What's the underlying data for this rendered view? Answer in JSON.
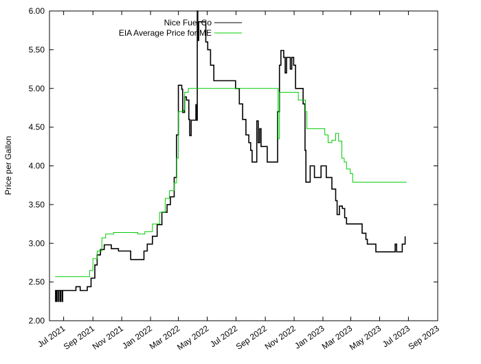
{
  "chart_data": {
    "type": "line",
    "title": "",
    "xlabel": "",
    "ylabel": "Price per Gallon",
    "xlim": [
      "2021-06-01",
      "2023-09-01"
    ],
    "ylim": [
      2.0,
      6.0
    ],
    "grid": false,
    "legend_position": "top-right",
    "y_ticks": [
      "2.00",
      "2.50",
      "3.00",
      "3.50",
      "4.00",
      "4.50",
      "5.00",
      "5.50",
      "6.00"
    ],
    "x_ticks": [
      {
        "date": "2021-07-01",
        "label": "Jul 2021"
      },
      {
        "date": "2021-09-01",
        "label": "Sep 2021"
      },
      {
        "date": "2021-11-01",
        "label": "Nov 2021"
      },
      {
        "date": "2022-01-01",
        "label": "Jan 2022"
      },
      {
        "date": "2022-03-01",
        "label": "Mar 2022"
      },
      {
        "date": "2022-05-01",
        "label": "May 2022"
      },
      {
        "date": "2022-07-01",
        "label": "Jul 2022"
      },
      {
        "date": "2022-09-01",
        "label": "Sep 2022"
      },
      {
        "date": "2022-11-01",
        "label": "Nov 2022"
      },
      {
        "date": "2023-01-01",
        "label": "Jan 2023"
      },
      {
        "date": "2023-03-01",
        "label": "Mar 2023"
      },
      {
        "date": "2023-05-01",
        "label": "May 2023"
      },
      {
        "date": "2023-07-01",
        "label": "Jul 2023"
      },
      {
        "date": "2023-09-01",
        "label": "Sep 2023"
      }
    ],
    "series": [
      {
        "name": "Nice Fuel Co",
        "color": "#000000",
        "points": [
          [
            "2021-06-13",
            2.25
          ],
          [
            "2021-06-14",
            2.39
          ],
          [
            "2021-06-16",
            2.25
          ],
          [
            "2021-06-17",
            2.39
          ],
          [
            "2021-06-20",
            2.25
          ],
          [
            "2021-06-21",
            2.39
          ],
          [
            "2021-06-24",
            2.25
          ],
          [
            "2021-06-25",
            2.39
          ],
          [
            "2021-06-28",
            2.25
          ],
          [
            "2021-06-29",
            2.39
          ],
          [
            "2021-07-20",
            2.39
          ],
          [
            "2021-07-27",
            2.44
          ],
          [
            "2021-08-05",
            2.39
          ],
          [
            "2021-08-20",
            2.44
          ],
          [
            "2021-08-28",
            2.55
          ],
          [
            "2021-09-05",
            2.72
          ],
          [
            "2021-09-10",
            2.85
          ],
          [
            "2021-09-17",
            2.92
          ],
          [
            "2021-09-25",
            2.98
          ],
          [
            "2021-10-10",
            2.93
          ],
          [
            "2021-10-25",
            2.9
          ],
          [
            "2021-11-15",
            2.9
          ],
          [
            "2021-11-20",
            2.79
          ],
          [
            "2021-12-15",
            2.79
          ],
          [
            "2021-12-18",
            2.9
          ],
          [
            "2021-12-25",
            2.99
          ],
          [
            "2022-01-05",
            3.09
          ],
          [
            "2022-01-15",
            3.24
          ],
          [
            "2022-01-25",
            3.4
          ],
          [
            "2022-02-05",
            3.5
          ],
          [
            "2022-02-12",
            3.6
          ],
          [
            "2022-02-20",
            3.85
          ],
          [
            "2022-02-25",
            4.4
          ],
          [
            "2022-03-01",
            5.04
          ],
          [
            "2022-03-08",
            4.99
          ],
          [
            "2022-03-10",
            4.69
          ],
          [
            "2022-03-14",
            4.89
          ],
          [
            "2022-03-18",
            4.85
          ],
          [
            "2022-03-23",
            4.6
          ],
          [
            "2022-03-25",
            4.39
          ],
          [
            "2022-03-28",
            4.59
          ],
          [
            "2022-04-05",
            4.59
          ],
          [
            "2022-04-07",
            4.79
          ],
          [
            "2022-04-08",
            4.59
          ],
          [
            "2022-04-10",
            6.0
          ],
          [
            "2022-04-11",
            5.62
          ],
          [
            "2022-04-13",
            5.86
          ],
          [
            "2022-04-25",
            5.86
          ],
          [
            "2022-04-28",
            5.6
          ],
          [
            "2022-05-02",
            5.5
          ],
          [
            "2022-05-08",
            5.3
          ],
          [
            "2022-05-15",
            5.1
          ],
          [
            "2022-06-25",
            5.1
          ],
          [
            "2022-06-30",
            5.0
          ],
          [
            "2022-07-08",
            4.8
          ],
          [
            "2022-07-15",
            4.6
          ],
          [
            "2022-07-22",
            4.4
          ],
          [
            "2022-07-28",
            4.3
          ],
          [
            "2022-08-01",
            4.2
          ],
          [
            "2022-08-04",
            4.05
          ],
          [
            "2022-08-13",
            4.05
          ],
          [
            "2022-08-14",
            4.58
          ],
          [
            "2022-08-17",
            4.3
          ],
          [
            "2022-08-20",
            4.48
          ],
          [
            "2022-08-23",
            4.25
          ],
          [
            "2022-09-03",
            4.25
          ],
          [
            "2022-09-05",
            4.05
          ],
          [
            "2022-09-25",
            4.05
          ],
          [
            "2022-09-27",
            4.7
          ],
          [
            "2022-10-01",
            5.3
          ],
          [
            "2022-10-04",
            5.49
          ],
          [
            "2022-10-10",
            5.4
          ],
          [
            "2022-10-13",
            5.2
          ],
          [
            "2022-10-16",
            5.4
          ],
          [
            "2022-10-22",
            5.4
          ],
          [
            "2022-10-24",
            5.25
          ],
          [
            "2022-10-27",
            5.4
          ],
          [
            "2022-10-31",
            5.3
          ],
          [
            "2022-11-04",
            5.0
          ],
          [
            "2022-11-20",
            4.8
          ],
          [
            "2022-11-24",
            4.2
          ],
          [
            "2022-11-26",
            3.79
          ],
          [
            "2022-12-01",
            3.79
          ],
          [
            "2022-12-05",
            4.0
          ],
          [
            "2022-12-14",
            3.85
          ],
          [
            "2022-12-25",
            3.85
          ],
          [
            "2022-12-28",
            4.0
          ],
          [
            "2023-01-05",
            4.0
          ],
          [
            "2023-01-08",
            3.85
          ],
          [
            "2023-01-15",
            3.85
          ],
          [
            "2023-01-20",
            3.7
          ],
          [
            "2023-01-28",
            3.55
          ],
          [
            "2023-01-31",
            3.37
          ],
          [
            "2023-02-05",
            3.48
          ],
          [
            "2023-02-11",
            3.45
          ],
          [
            "2023-02-16",
            3.33
          ],
          [
            "2023-02-20",
            3.25
          ],
          [
            "2023-03-22",
            3.25
          ],
          [
            "2023-03-25",
            3.13
          ],
          [
            "2023-04-02",
            3.05
          ],
          [
            "2023-04-05",
            2.99
          ],
          [
            "2023-04-20",
            2.99
          ],
          [
            "2023-04-23",
            2.89
          ],
          [
            "2023-06-01",
            2.89
          ],
          [
            "2023-06-03",
            2.99
          ],
          [
            "2023-06-06",
            2.89
          ],
          [
            "2023-06-16",
            2.89
          ],
          [
            "2023-06-18",
            2.99
          ],
          [
            "2023-06-22",
            2.99
          ],
          [
            "2023-06-24",
            3.09
          ]
        ]
      },
      {
        "name": "EIA Average Price for ME",
        "color": "#00cc00",
        "points": [
          [
            "2021-06-13",
            2.57
          ],
          [
            "2021-08-20",
            2.57
          ],
          [
            "2021-08-25",
            2.65
          ],
          [
            "2021-09-01",
            2.8
          ],
          [
            "2021-09-10",
            2.9
          ],
          [
            "2021-09-20",
            3.07
          ],
          [
            "2021-09-28",
            3.12
          ],
          [
            "2021-10-15",
            3.14
          ],
          [
            "2021-11-15",
            3.14
          ],
          [
            "2021-12-05",
            3.12
          ],
          [
            "2021-12-20",
            3.15
          ],
          [
            "2022-01-05",
            3.25
          ],
          [
            "2022-01-20",
            3.4
          ],
          [
            "2022-02-01",
            3.58
          ],
          [
            "2022-02-10",
            3.68
          ],
          [
            "2022-02-20",
            3.78
          ],
          [
            "2022-02-25",
            4.1
          ],
          [
            "2022-03-01",
            4.7
          ],
          [
            "2022-03-12",
            4.72
          ],
          [
            "2022-03-14",
            4.95
          ],
          [
            "2022-03-22",
            5.0
          ],
          [
            "2022-09-25",
            5.0
          ],
          [
            "2022-09-28",
            4.35
          ],
          [
            "2022-10-01",
            4.95
          ],
          [
            "2022-11-10",
            4.85
          ],
          [
            "2022-11-25",
            4.7
          ],
          [
            "2022-11-28",
            4.48
          ],
          [
            "2022-12-20",
            4.48
          ],
          [
            "2023-01-05",
            4.4
          ],
          [
            "2023-01-12",
            4.3
          ],
          [
            "2023-01-20",
            4.33
          ],
          [
            "2023-01-28",
            4.42
          ],
          [
            "2023-02-03",
            4.32
          ],
          [
            "2023-02-10",
            4.1
          ],
          [
            "2023-02-15",
            4.05
          ],
          [
            "2023-02-20",
            3.96
          ],
          [
            "2023-02-28",
            3.9
          ],
          [
            "2023-03-05",
            3.79
          ],
          [
            "2023-06-27",
            3.79
          ]
        ]
      }
    ]
  }
}
